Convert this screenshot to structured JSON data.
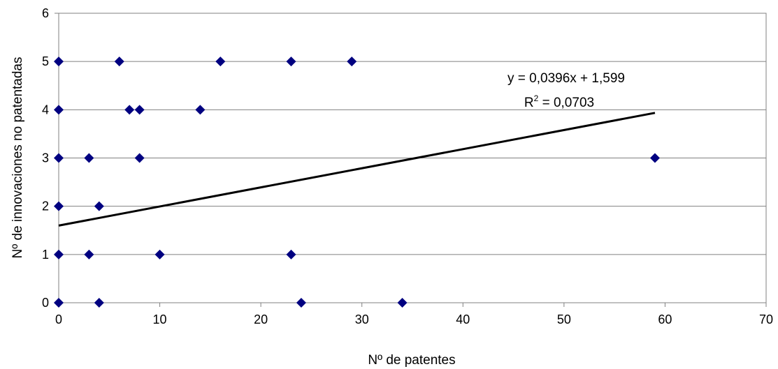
{
  "chart_data": {
    "type": "scatter",
    "xlabel": "Nº de patentes",
    "ylabel": "Nº de innovaciones no patentadas",
    "xlim": [
      0,
      70
    ],
    "ylim": [
      0,
      6
    ],
    "x_ticks": [
      "0",
      "10",
      "20",
      "30",
      "40",
      "50",
      "60",
      "70"
    ],
    "y_ticks": [
      "0",
      "1",
      "2",
      "3",
      "4",
      "5",
      "6"
    ],
    "grid": "horizontal",
    "marker": "diamond",
    "marker_color": "#000080",
    "trendline_color": "#000000",
    "points": [
      {
        "x": 0,
        "y": 5
      },
      {
        "x": 0,
        "y": 4
      },
      {
        "x": 0,
        "y": 3
      },
      {
        "x": 0,
        "y": 2
      },
      {
        "x": 0,
        "y": 1
      },
      {
        "x": 0,
        "y": 0
      },
      {
        "x": 6,
        "y": 5
      },
      {
        "x": 16,
        "y": 5
      },
      {
        "x": 23,
        "y": 5
      },
      {
        "x": 29,
        "y": 5
      },
      {
        "x": 7,
        "y": 4
      },
      {
        "x": 8,
        "y": 4
      },
      {
        "x": 14,
        "y": 4
      },
      {
        "x": 3,
        "y": 3
      },
      {
        "x": 8,
        "y": 3
      },
      {
        "x": 59,
        "y": 3
      },
      {
        "x": 4,
        "y": 2
      },
      {
        "x": 3,
        "y": 1
      },
      {
        "x": 10,
        "y": 1
      },
      {
        "x": 23,
        "y": 1
      },
      {
        "x": 4,
        "y": 0
      },
      {
        "x": 24,
        "y": 0
      },
      {
        "x": 34,
        "y": 0
      }
    ],
    "trendline": {
      "slope": 0.0396,
      "intercept": 1.599,
      "x_range": [
        0,
        59
      ],
      "equation": "y = 0,0396x + 1,599",
      "r2_label": "R",
      "r2_exponent": "2",
      "r2_value": " = 0,0703"
    }
  }
}
